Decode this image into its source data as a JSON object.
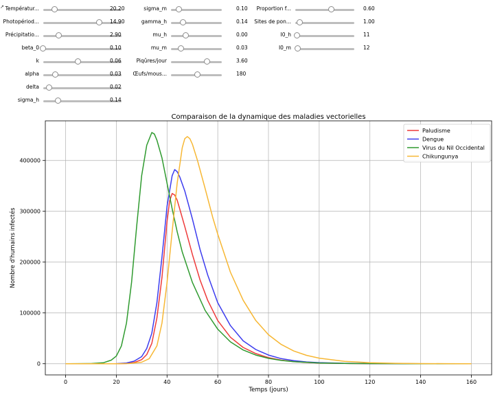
{
  "sliders": [
    {
      "id": "temperature",
      "label": "Températur...",
      "value": "20.20",
      "level": 0.15
    },
    {
      "id": "photoperiod",
      "label": "Photopériod...",
      "value": "14.90",
      "level": 0.72
    },
    {
      "id": "precipitation",
      "label": "Précipitatio...",
      "value": "2.90",
      "level": 0.2
    },
    {
      "id": "beta-0",
      "label": "beta_0",
      "value": "0.10",
      "level": 0.0
    },
    {
      "id": "k",
      "label": "k",
      "value": "0.06",
      "level": 0.45
    },
    {
      "id": "alpha",
      "label": "alpha",
      "value": "0.03",
      "level": 0.16
    },
    {
      "id": "delta",
      "label": "delta",
      "value": "0.02",
      "level": 0.08
    },
    {
      "id": "sigma-h",
      "label": "sigma_h",
      "value": "0.14",
      "level": 0.19
    },
    {
      "id": "sigma-m",
      "label": "sigma_m",
      "value": "0.10",
      "level": 0.16
    },
    {
      "id": "gamma-h",
      "label": "gamma_h",
      "value": "0.14",
      "level": 0.24
    },
    {
      "id": "mu-h",
      "label": "mu_h",
      "value": "0.00",
      "level": 0.3
    },
    {
      "id": "mu-m",
      "label": "mu_m",
      "value": "0.03",
      "level": 0.2
    },
    {
      "id": "piqures-jour",
      "label": "Piqûres/jour",
      "value": "3.60",
      "level": 0.72
    },
    {
      "id": "oeufs-moustique",
      "label": "Œufs/mous...",
      "value": "180",
      "level": 0.53
    },
    {
      "id": "proportion-f",
      "label": "Proportion f...",
      "value": "0.60",
      "level": 0.62
    },
    {
      "id": "sites-ponte",
      "label": "Sites de pon...",
      "value": "1.00",
      "level": 0.08
    },
    {
      "id": "i0-h",
      "label": "I0_h",
      "value": "11",
      "level": 0.04
    },
    {
      "id": "i0-m",
      "label": "I0_m",
      "value": "12",
      "level": 0.05
    }
  ],
  "chart_data": {
    "type": "line",
    "title": "Comparaison de la dynamique des maladies vectorielles",
    "xlabel": "Temps (jours)",
    "ylabel": "Nombre d'humains infectés",
    "xlim": [
      -8,
      168
    ],
    "ylim": [
      -22000,
      478000
    ],
    "xticks": [
      0,
      20,
      40,
      60,
      80,
      100,
      120,
      140,
      160
    ],
    "xtick_labels": [
      "0",
      "20",
      "40",
      "60",
      "80",
      "100",
      "120",
      "140",
      "160"
    ],
    "yticks": [
      0,
      100000,
      200000,
      300000,
      400000
    ],
    "ytick_labels": [
      "0",
      "100000",
      "200000",
      "300000",
      "400000"
    ],
    "grid": true,
    "legend_position": "top-right",
    "series": [
      {
        "name": "Paludisme",
        "color": "#ee3a3a",
        "points": [
          [
            0,
            0
          ],
          [
            10,
            0
          ],
          [
            20,
            0
          ],
          [
            24,
            500
          ],
          [
            27,
            2500
          ],
          [
            30,
            8000
          ],
          [
            32,
            18000
          ],
          [
            34,
            40000
          ],
          [
            36,
            90000
          ],
          [
            38,
            170000
          ],
          [
            40,
            280000
          ],
          [
            41,
            320000
          ],
          [
            42,
            335000
          ],
          [
            43,
            332000
          ],
          [
            44,
            322000
          ],
          [
            45,
            305000
          ],
          [
            47,
            270000
          ],
          [
            50,
            215000
          ],
          [
            53,
            165000
          ],
          [
            56,
            125000
          ],
          [
            60,
            85000
          ],
          [
            65,
            52000
          ],
          [
            70,
            32000
          ],
          [
            75,
            20000
          ],
          [
            80,
            12000
          ],
          [
            85,
            7000
          ],
          [
            90,
            4200
          ],
          [
            95,
            2500
          ],
          [
            100,
            1500
          ],
          [
            110,
            600
          ],
          [
            120,
            200
          ],
          [
            140,
            20
          ],
          [
            160,
            0
          ]
        ]
      },
      {
        "name": "Dengue",
        "color": "#3b3bee",
        "points": [
          [
            0,
            0
          ],
          [
            10,
            0
          ],
          [
            20,
            200
          ],
          [
            24,
            1500
          ],
          [
            27,
            5000
          ],
          [
            30,
            14000
          ],
          [
            32,
            30000
          ],
          [
            34,
            60000
          ],
          [
            36,
            120000
          ],
          [
            38,
            210000
          ],
          [
            40,
            310000
          ],
          [
            42,
            370000
          ],
          [
            43,
            382000
          ],
          [
            44,
            378000
          ],
          [
            45,
            368000
          ],
          [
            47,
            340000
          ],
          [
            50,
            285000
          ],
          [
            53,
            225000
          ],
          [
            56,
            175000
          ],
          [
            60,
            120000
          ],
          [
            65,
            75000
          ],
          [
            70,
            45000
          ],
          [
            75,
            28000
          ],
          [
            80,
            17000
          ],
          [
            85,
            10000
          ],
          [
            90,
            6000
          ],
          [
            95,
            3600
          ],
          [
            100,
            2200
          ],
          [
            110,
            800
          ],
          [
            120,
            300
          ],
          [
            140,
            30
          ],
          [
            160,
            0
          ]
        ]
      },
      {
        "name": "Virus du Nil Occidental",
        "color": "#2e9a2e",
        "points": [
          [
            0,
            0
          ],
          [
            10,
            300
          ],
          [
            15,
            2000
          ],
          [
            18,
            7000
          ],
          [
            20,
            15000
          ],
          [
            22,
            35000
          ],
          [
            24,
            80000
          ],
          [
            26,
            160000
          ],
          [
            28,
            270000
          ],
          [
            30,
            370000
          ],
          [
            32,
            430000
          ],
          [
            34,
            455000
          ],
          [
            35,
            452000
          ],
          [
            36,
            440000
          ],
          [
            38,
            405000
          ],
          [
            40,
            355000
          ],
          [
            42,
            305000
          ],
          [
            44,
            260000
          ],
          [
            46,
            220000
          ],
          [
            50,
            160000
          ],
          [
            55,
            105000
          ],
          [
            60,
            68000
          ],
          [
            65,
            43000
          ],
          [
            70,
            27000
          ],
          [
            75,
            17000
          ],
          [
            80,
            10500
          ],
          [
            85,
            6500
          ],
          [
            90,
            4000
          ],
          [
            100,
            1500
          ],
          [
            110,
            600
          ],
          [
            120,
            250
          ],
          [
            140,
            40
          ],
          [
            160,
            0
          ]
        ]
      },
      {
        "name": "Chikungunya",
        "color": "#f7b733",
        "points": [
          [
            0,
            0
          ],
          [
            10,
            0
          ],
          [
            20,
            0
          ],
          [
            25,
            500
          ],
          [
            30,
            3000
          ],
          [
            33,
            10000
          ],
          [
            36,
            35000
          ],
          [
            38,
            80000
          ],
          [
            40,
            160000
          ],
          [
            42,
            260000
          ],
          [
            44,
            355000
          ],
          [
            46,
            425000
          ],
          [
            47,
            443000
          ],
          [
            48,
            447000
          ],
          [
            49,
            443000
          ],
          [
            50,
            432000
          ],
          [
            52,
            400000
          ],
          [
            55,
            345000
          ],
          [
            58,
            288000
          ],
          [
            60,
            255000
          ],
          [
            65,
            180000
          ],
          [
            70,
            125000
          ],
          [
            75,
            85000
          ],
          [
            80,
            57000
          ],
          [
            85,
            38000
          ],
          [
            90,
            25000
          ],
          [
            95,
            16500
          ],
          [
            100,
            11000
          ],
          [
            110,
            4800
          ],
          [
            120,
            2000
          ],
          [
            130,
            850
          ],
          [
            140,
            350
          ],
          [
            150,
            150
          ],
          [
            160,
            50
          ]
        ]
      }
    ]
  }
}
